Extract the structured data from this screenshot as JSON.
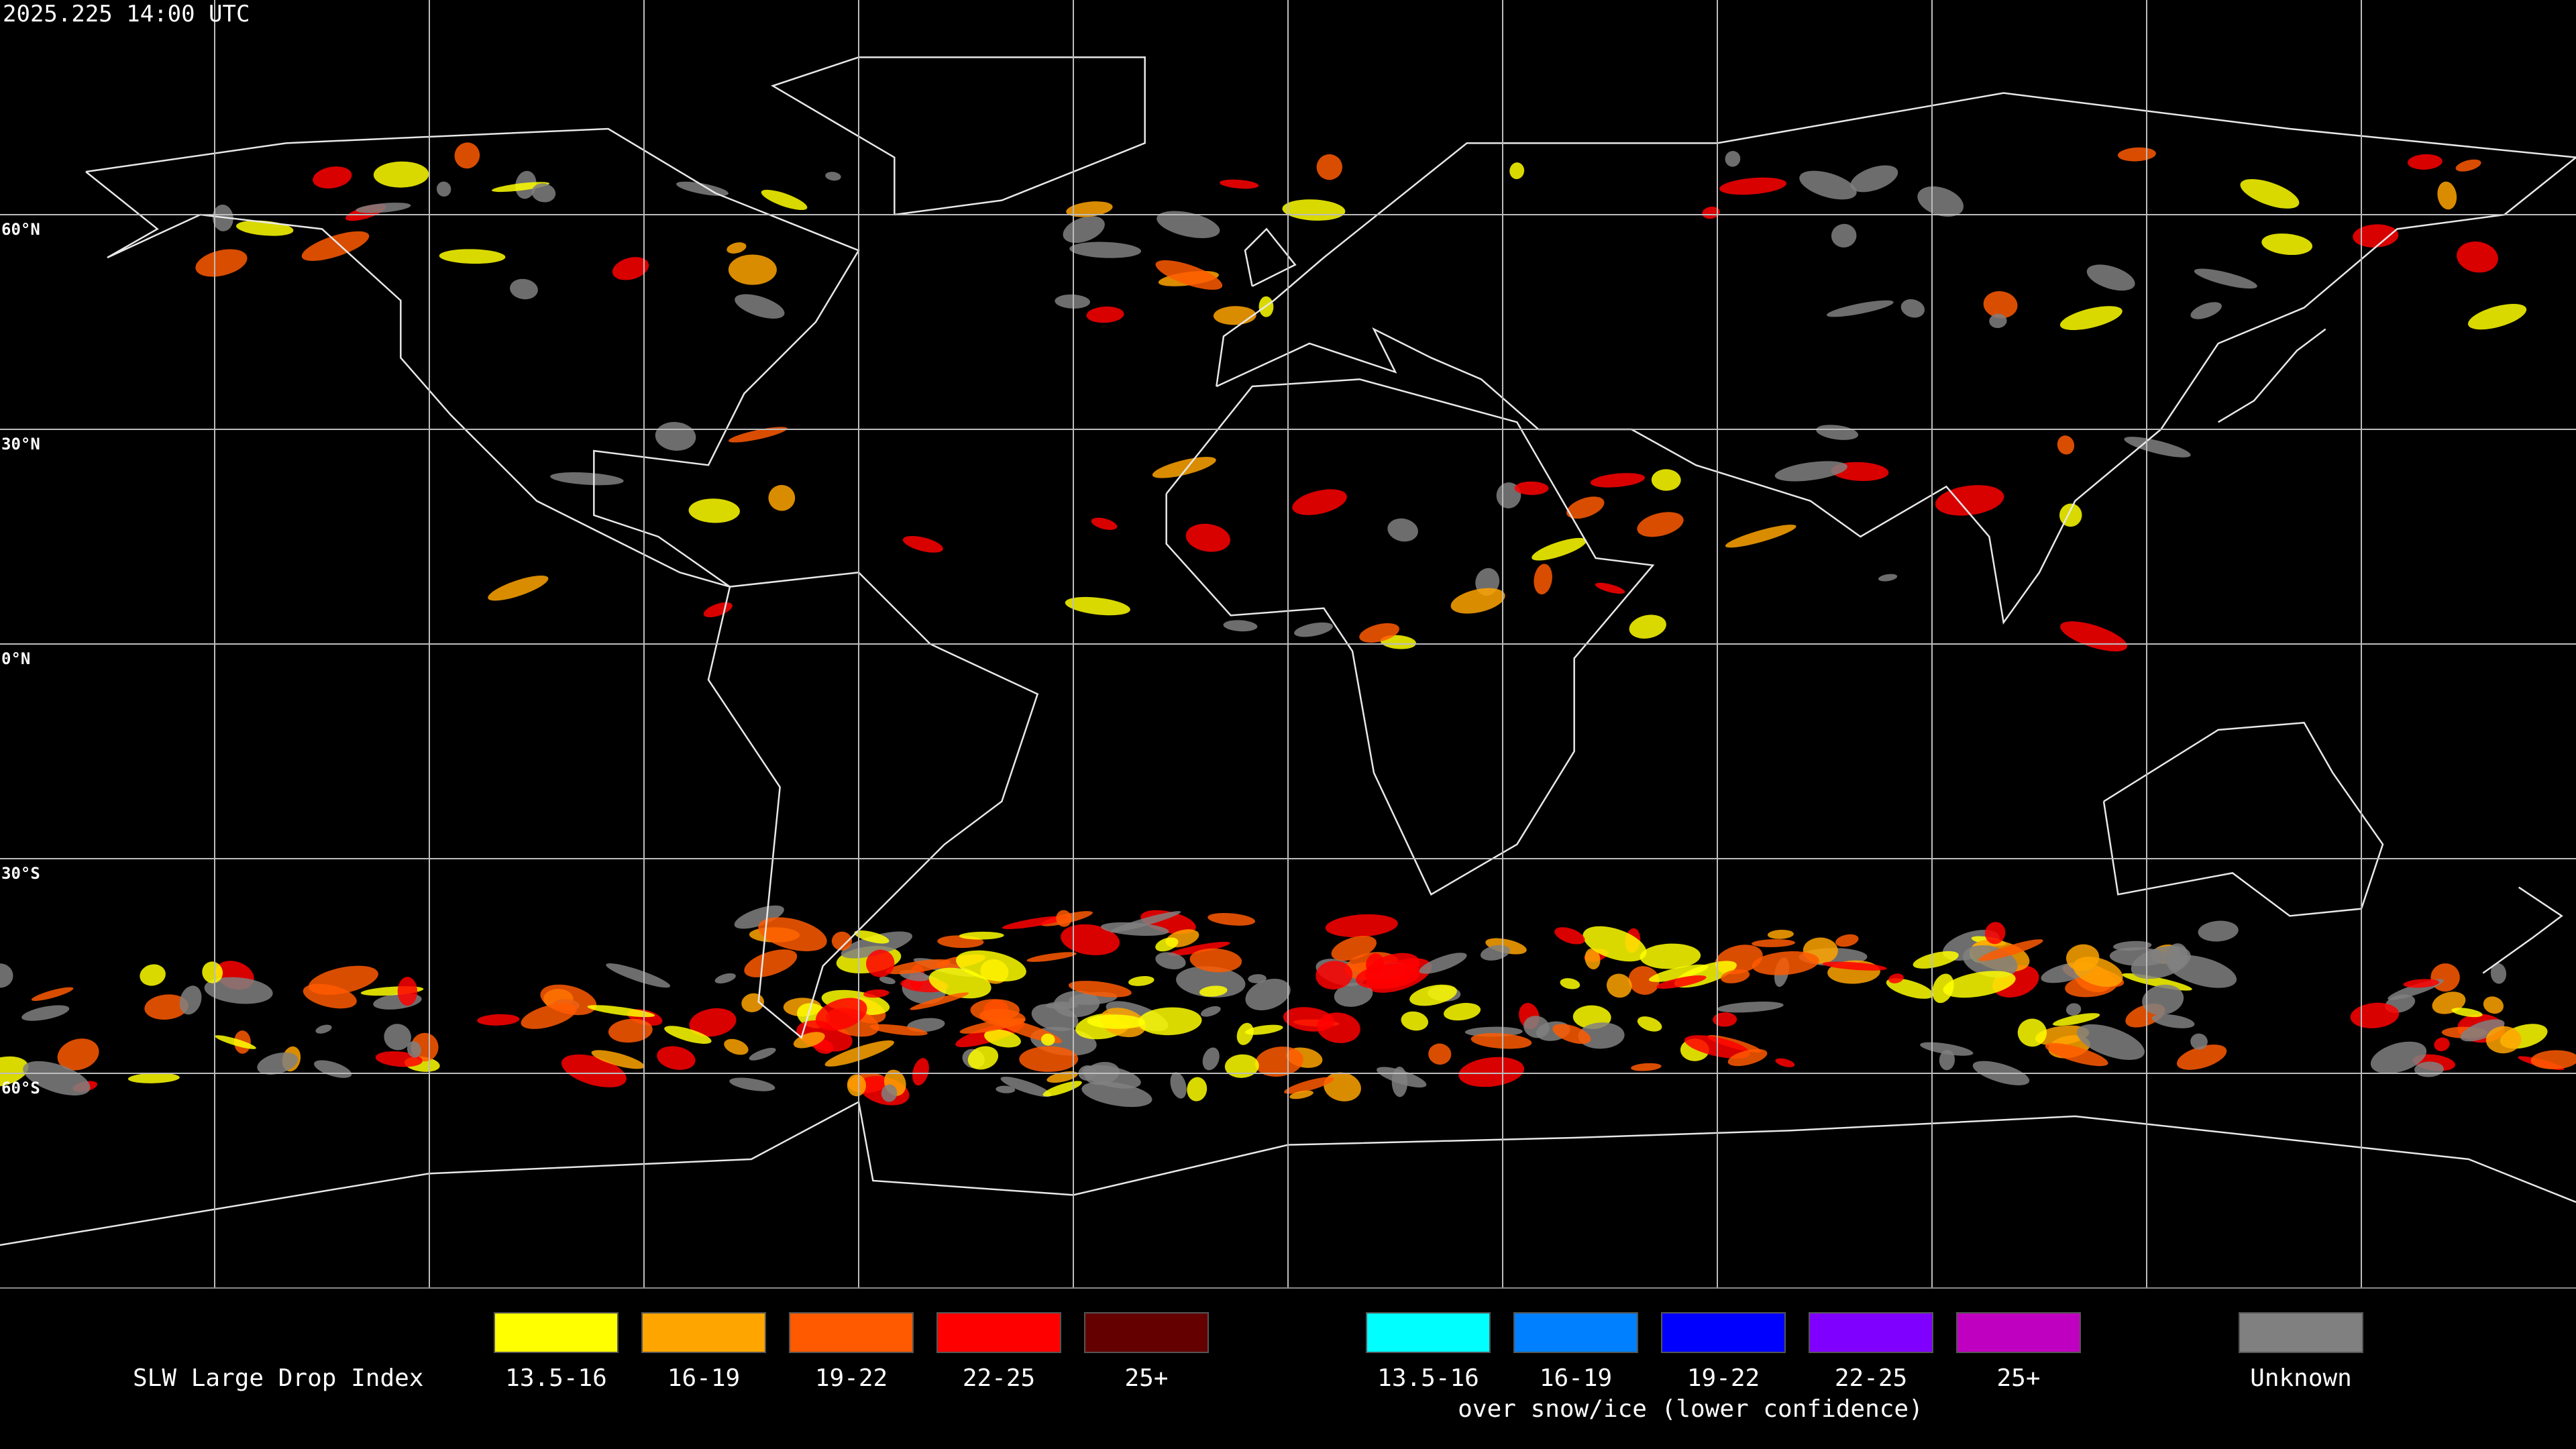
{
  "header": {
    "timestamp": "2025.225 14:00 UTC"
  },
  "map": {
    "lat_labels": [
      "60°N",
      "30°N",
      "0°N",
      "30°S",
      "60°S"
    ]
  },
  "legend": {
    "title": "SLW Large Drop Index",
    "items": [
      {
        "label": "13.5-16",
        "color": "#ffff00"
      },
      {
        "label": "16-19",
        "color": "#ffa500"
      },
      {
        "label": "19-22",
        "color": "#ff5a00"
      },
      {
        "label": "22-25",
        "color": "#ff0000"
      },
      {
        "label": "25+",
        "color": "#640000"
      }
    ],
    "snow_items": [
      {
        "label": "13.5-16",
        "color": "#00ffff"
      },
      {
        "label": "16-19",
        "color": "#0080ff"
      },
      {
        "label": "19-22",
        "color": "#0000ff"
      },
      {
        "label": "22-25",
        "color": "#8000ff"
      },
      {
        "label": "25+",
        "color": "#c000c0"
      }
    ],
    "snow_note": "over snow/ice (lower confidence)",
    "unknown": {
      "label": "Unknown",
      "color": "#808080"
    }
  }
}
